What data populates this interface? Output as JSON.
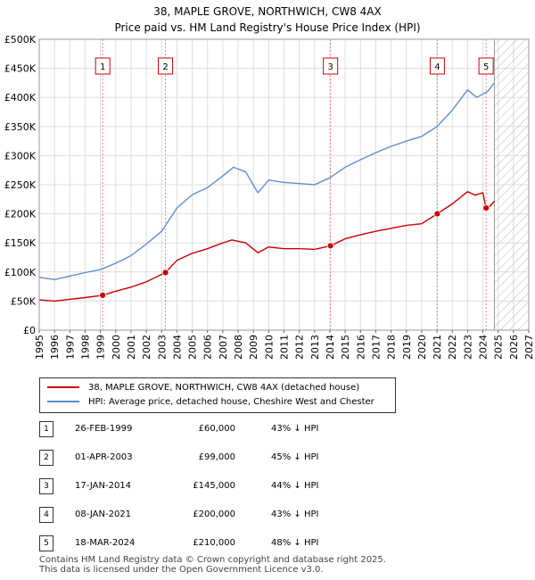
{
  "title": {
    "line1": "38, MAPLE GROVE, NORTHWICH, CW8 4AX",
    "line2": "Price paid vs. HM Land Registry's House Price Index (HPI)"
  },
  "chart_data": {
    "type": "line",
    "title": "38, MAPLE GROVE, NORTHWICH, CW8 4AX — Price paid vs. HM Land Registry's House Price Index (HPI)",
    "xlim": [
      1995,
      2027
    ],
    "ylim": [
      0,
      500000
    ],
    "x_ticks": [
      1995,
      1996,
      1997,
      1998,
      1999,
      2000,
      2001,
      2002,
      2003,
      2004,
      2005,
      2006,
      2007,
      2008,
      2009,
      2010,
      2011,
      2012,
      2013,
      2014,
      2015,
      2016,
      2017,
      2018,
      2019,
      2020,
      2021,
      2022,
      2023,
      2024,
      2025,
      2026,
      2027
    ],
    "y_ticks": [
      0,
      50000,
      100000,
      150000,
      200000,
      250000,
      300000,
      350000,
      400000,
      450000,
      500000
    ],
    "y_tick_labels": [
      "£0",
      "£50K",
      "£100K",
      "£150K",
      "£200K",
      "£250K",
      "£300K",
      "£350K",
      "£400K",
      "£450K",
      "£500K"
    ],
    "grid": true,
    "forecast_start": 2024.75,
    "series": [
      {
        "name": "38, MAPLE GROVE, NORTHWICH, CW8 4AX (detached house)",
        "color": "#cc0000",
        "x": [
          1995,
          1996,
          1997,
          1998,
          1999.15,
          2000,
          2001,
          2002,
          2003.25,
          2004,
          2005,
          2006,
          2007,
          2007.6,
          2008.5,
          2009.3,
          2010,
          2011,
          2012,
          2013,
          2014.04,
          2015,
          2016,
          2017,
          2018,
          2019,
          2020,
          2021.02,
          2022,
          2023,
          2023.5,
          2024.0,
          2024.21,
          2024.5,
          2024.75
        ],
        "y": [
          52000,
          50000,
          53000,
          56000,
          60000,
          67000,
          74000,
          83000,
          99000,
          120000,
          132000,
          140000,
          150000,
          155000,
          150000,
          133000,
          143000,
          140000,
          140000,
          139000,
          145000,
          157000,
          164000,
          170000,
          175000,
          180000,
          183000,
          200000,
          217000,
          238000,
          232000,
          236000,
          210000,
          214000,
          222000
        ]
      },
      {
        "name": "HPI: Average price, detached house, Cheshire West and Chester",
        "color": "#5b8fd1",
        "x": [
          1995,
          1996,
          1997,
          1998,
          1999,
          2000,
          2001,
          2002,
          2003,
          2004,
          2005,
          2006,
          2007,
          2007.7,
          2008.5,
          2009.3,
          2010,
          2011,
          2012,
          2013,
          2014,
          2015,
          2016,
          2017,
          2018,
          2019,
          2020,
          2021,
          2022,
          2023,
          2023.6,
          2024,
          2024.3,
          2024.75
        ],
        "y": [
          91000,
          87000,
          93000,
          99000,
          104000,
          115000,
          128000,
          148000,
          170000,
          210000,
          233000,
          245000,
          265000,
          280000,
          272000,
          236000,
          258000,
          254000,
          252000,
          250000,
          262000,
          280000,
          293000,
          305000,
          316000,
          325000,
          333000,
          350000,
          378000,
          413000,
          400000,
          406000,
          410000,
          425000
        ]
      }
    ],
    "sales": [
      {
        "label": "1",
        "x": 1999.15,
        "y": 60000
      },
      {
        "label": "2",
        "x": 2003.25,
        "y": 99000
      },
      {
        "label": "3",
        "x": 2014.04,
        "y": 145000
      },
      {
        "label": "4",
        "x": 2021.02,
        "y": 200000
      },
      {
        "label": "5",
        "x": 2024.21,
        "y": 210000
      }
    ]
  },
  "legend": {
    "property": "38, MAPLE GROVE, NORTHWICH, CW8 4AX (detached house)",
    "hpi": "HPI: Average price, detached house, Cheshire West and Chester"
  },
  "sales_table": [
    {
      "num": "1",
      "date": "26-FEB-1999",
      "price": "£60,000",
      "hpi": "43% ↓ HPI"
    },
    {
      "num": "2",
      "date": "01-APR-2003",
      "price": "£99,000",
      "hpi": "45% ↓ HPI"
    },
    {
      "num": "3",
      "date": "17-JAN-2014",
      "price": "£145,000",
      "hpi": "44% ↓ HPI"
    },
    {
      "num": "4",
      "date": "08-JAN-2021",
      "price": "£200,000",
      "hpi": "43% ↓ HPI"
    },
    {
      "num": "5",
      "date": "18-MAR-2024",
      "price": "£210,000",
      "hpi": "48% ↓ HPI"
    }
  ],
  "footer": {
    "line1": "Contains HM Land Registry data © Crown copyright and database right 2025.",
    "line2": "This data is licensed under the Open Government Licence v3.0."
  },
  "colors": {
    "property": "#cc0000",
    "hpi": "#5b8fd1",
    "grid": "#dddddd",
    "sale_line": "#e88888"
  }
}
